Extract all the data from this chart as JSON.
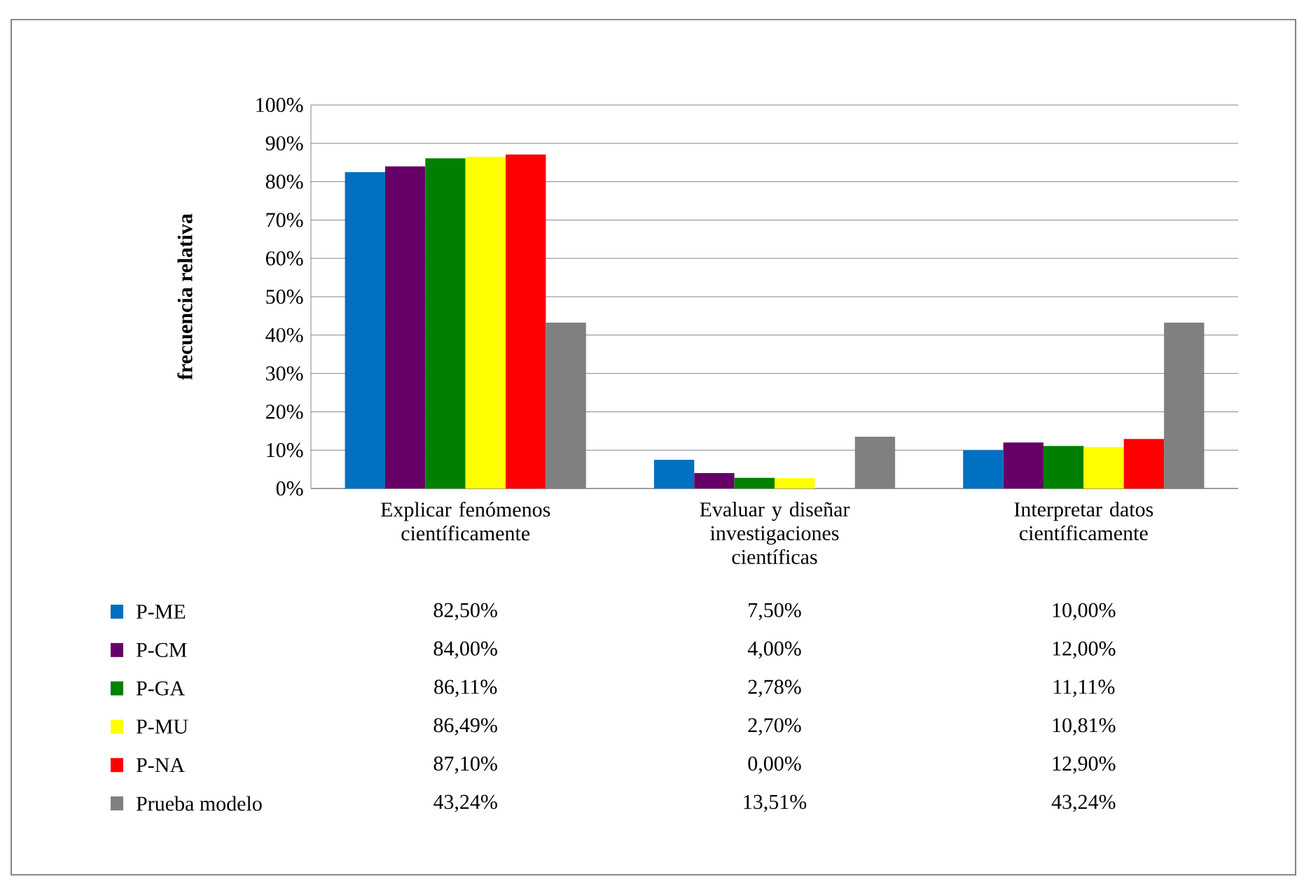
{
  "chart_data": {
    "type": "bar",
    "ylabel": "frecuencia relativa",
    "categories": [
      "Explicar fenómenos científicamente",
      "Evaluar y diseñar investigaciones científicas",
      "Interpretar datos científicamente"
    ],
    "series": [
      {
        "name": "P-ME",
        "color": "#0070c0",
        "values": [
          82.5,
          7.5,
          10.0
        ],
        "value_labels": [
          "82,50%",
          "7,50%",
          "10,00%"
        ]
      },
      {
        "name": "P-CM",
        "color": "#660066",
        "values": [
          84.0,
          4.0,
          12.0
        ],
        "value_labels": [
          "84,00%",
          "4,00%",
          "12,00%"
        ]
      },
      {
        "name": "P-GA",
        "color": "#008000",
        "values": [
          86.11,
          2.78,
          11.11
        ],
        "value_labels": [
          "86,11%",
          "2,78%",
          "11,11%"
        ]
      },
      {
        "name": "P-MU",
        "color": "#ffff00",
        "values": [
          86.49,
          2.7,
          10.81
        ],
        "value_labels": [
          "86,49%",
          "2,70%",
          "10,81%"
        ]
      },
      {
        "name": "P-NA",
        "color": "#ff0000",
        "values": [
          87.1,
          0.0,
          12.9
        ],
        "value_labels": [
          "87,10%",
          "0,00%",
          "12,90%"
        ]
      },
      {
        "name": "Prueba modelo",
        "color": "#808080",
        "values": [
          43.24,
          13.51,
          43.24
        ],
        "value_labels": [
          "43,24%",
          "13,51%",
          "43,24%"
        ]
      }
    ],
    "ylim": [
      0,
      100
    ],
    "yticks": [
      {
        "value": 0,
        "label": "0%"
      },
      {
        "value": 10,
        "label": "10%"
      },
      {
        "value": 20,
        "label": "20%"
      },
      {
        "value": 30,
        "label": "30%"
      },
      {
        "value": 40,
        "label": "40%"
      },
      {
        "value": 50,
        "label": "50%"
      },
      {
        "value": 60,
        "label": "60%"
      },
      {
        "value": 70,
        "label": "70%"
      },
      {
        "value": 80,
        "label": "80%"
      },
      {
        "value": 90,
        "label": "90%"
      },
      {
        "value": 100,
        "label": "100%"
      }
    ],
    "grid": "y",
    "legend": "bottom left"
  }
}
